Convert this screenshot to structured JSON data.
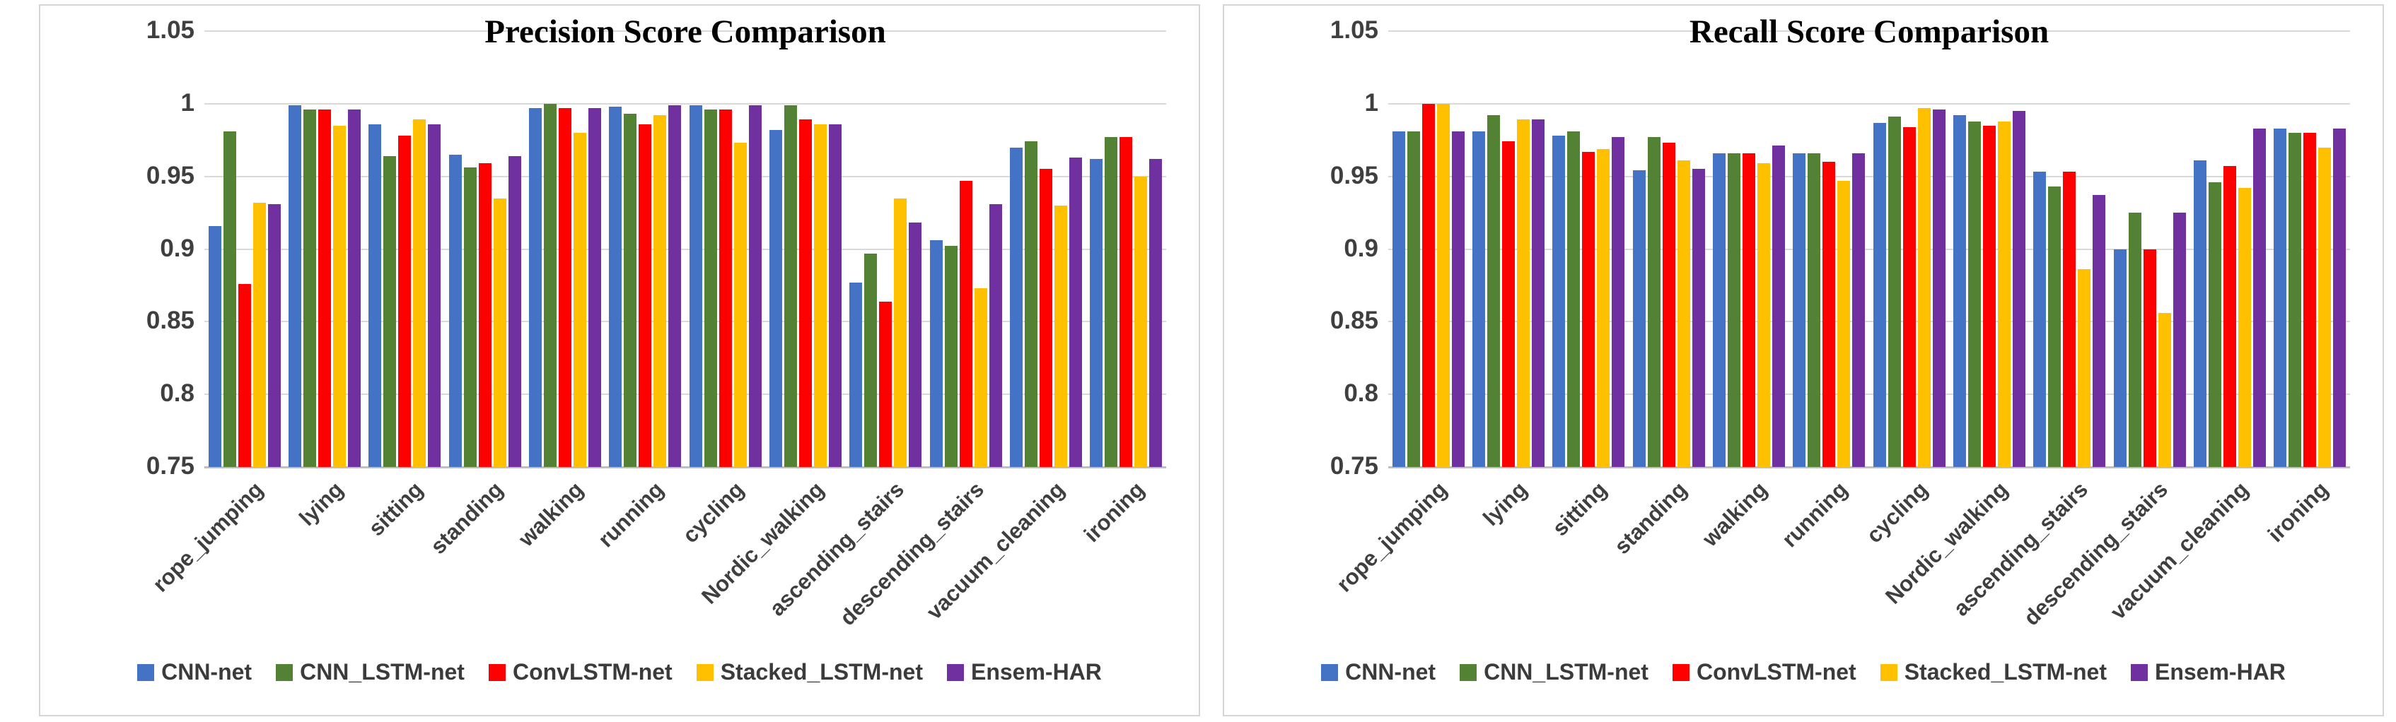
{
  "y_ticks": [
    "1.05",
    "1",
    "0.95",
    "0.9",
    "0.85",
    "0.8",
    "0.75"
  ],
  "categories": [
    "rope_jumping",
    "lying",
    "sitting",
    "standing",
    "walking",
    "running",
    "cycling",
    "Nordic_walking",
    "ascending_stairs",
    "descending_stairs",
    "vacuum_cleaning",
    "ironing"
  ],
  "colors": {
    "cnn_net": "#4472c4",
    "cnn_lstm_net": "#548235",
    "convlstm_net": "#fe0000",
    "stacked_lstm_net": "#ffc000",
    "ensem_har": "#7030a0",
    "gridline": "#d9d9d9",
    "axis_line": "#bfbfbf",
    "tick_text": "#3f3f3f"
  },
  "chart_data": [
    {
      "type": "bar",
      "title": "Precision Score Comparison",
      "xlabel": "",
      "ylabel": "",
      "ylim": [
        0.75,
        1.05
      ],
      "grid": true,
      "legend_position": "bottom",
      "y_ticks": [
        "1.05",
        "1",
        "0.95",
        "0.9",
        "0.85",
        "0.8",
        "0.75"
      ],
      "categories": [
        "rope_jumping",
        "lying",
        "sitting",
        "standing",
        "walking",
        "running",
        "cycling",
        "Nordic_walking",
        "ascending_stairs",
        "descending_stairs",
        "vacuum_cleaning",
        "ironing"
      ],
      "series": [
        {
          "name": "CNN-net",
          "color": "#4472c4",
          "values": [
            0.916,
            0.999,
            0.986,
            0.965,
            0.997,
            0.998,
            0.999,
            0.982,
            0.877,
            0.906,
            0.97,
            0.962
          ]
        },
        {
          "name": "CNN_LSTM-net",
          "color": "#548235",
          "values": [
            0.981,
            0.996,
            0.964,
            0.956,
            1.0,
            0.993,
            0.996,
            0.999,
            0.897,
            0.902,
            0.974,
            0.977
          ]
        },
        {
          "name": "ConvLSTM-net",
          "color": "#fe0000",
          "values": [
            0.876,
            0.996,
            0.978,
            0.959,
            0.997,
            0.986,
            0.996,
            0.989,
            0.864,
            0.947,
            0.955,
            0.977
          ]
        },
        {
          "name": "Stacked_LSTM-net",
          "color": "#ffc000",
          "values": [
            0.932,
            0.985,
            0.989,
            0.935,
            0.98,
            0.992,
            0.973,
            0.986,
            0.935,
            0.873,
            0.93,
            0.95
          ]
        },
        {
          "name": "Ensem-HAR",
          "color": "#7030a0",
          "values": [
            0.931,
            0.996,
            0.986,
            0.964,
            0.997,
            0.999,
            0.999,
            0.986,
            0.918,
            0.931,
            0.963,
            0.962
          ]
        }
      ]
    },
    {
      "type": "bar",
      "title": "Recall Score Comparison",
      "xlabel": "",
      "ylabel": "",
      "ylim": [
        0.75,
        1.05
      ],
      "grid": true,
      "legend_position": "bottom",
      "y_ticks": [
        "1.05",
        "1",
        "0.95",
        "0.9",
        "0.85",
        "0.8",
        "0.75"
      ],
      "categories": [
        "rope_jumping",
        "lying",
        "sitting",
        "standing",
        "walking",
        "running",
        "cycling",
        "Nordic_walking",
        "ascending_stairs",
        "descending_stairs",
        "vacuum_cleaning",
        "ironing"
      ],
      "series": [
        {
          "name": "CNN-net",
          "color": "#4472c4",
          "values": [
            0.981,
            0.981,
            0.978,
            0.954,
            0.966,
            0.966,
            0.987,
            0.992,
            0.953,
            0.9,
            0.961,
            0.983
          ]
        },
        {
          "name": "CNN_LSTM-net",
          "color": "#548235",
          "values": [
            0.981,
            0.992,
            0.981,
            0.977,
            0.966,
            0.966,
            0.991,
            0.988,
            0.943,
            0.925,
            0.946,
            0.98
          ]
        },
        {
          "name": "ConvLSTM-net",
          "color": "#fe0000",
          "values": [
            1.0,
            0.974,
            0.967,
            0.973,
            0.966,
            0.96,
            0.984,
            0.985,
            0.953,
            0.9,
            0.957,
            0.98
          ]
        },
        {
          "name": "Stacked_LSTM-net",
          "color": "#ffc000",
          "values": [
            1.0,
            0.989,
            0.969,
            0.961,
            0.959,
            0.947,
            0.997,
            0.988,
            0.886,
            0.856,
            0.942,
            0.97
          ]
        },
        {
          "name": "Ensem-HAR",
          "color": "#7030a0",
          "values": [
            0.981,
            0.989,
            0.977,
            0.955,
            0.971,
            0.966,
            0.996,
            0.995,
            0.937,
            0.925,
            0.983,
            0.983
          ]
        }
      ]
    }
  ]
}
